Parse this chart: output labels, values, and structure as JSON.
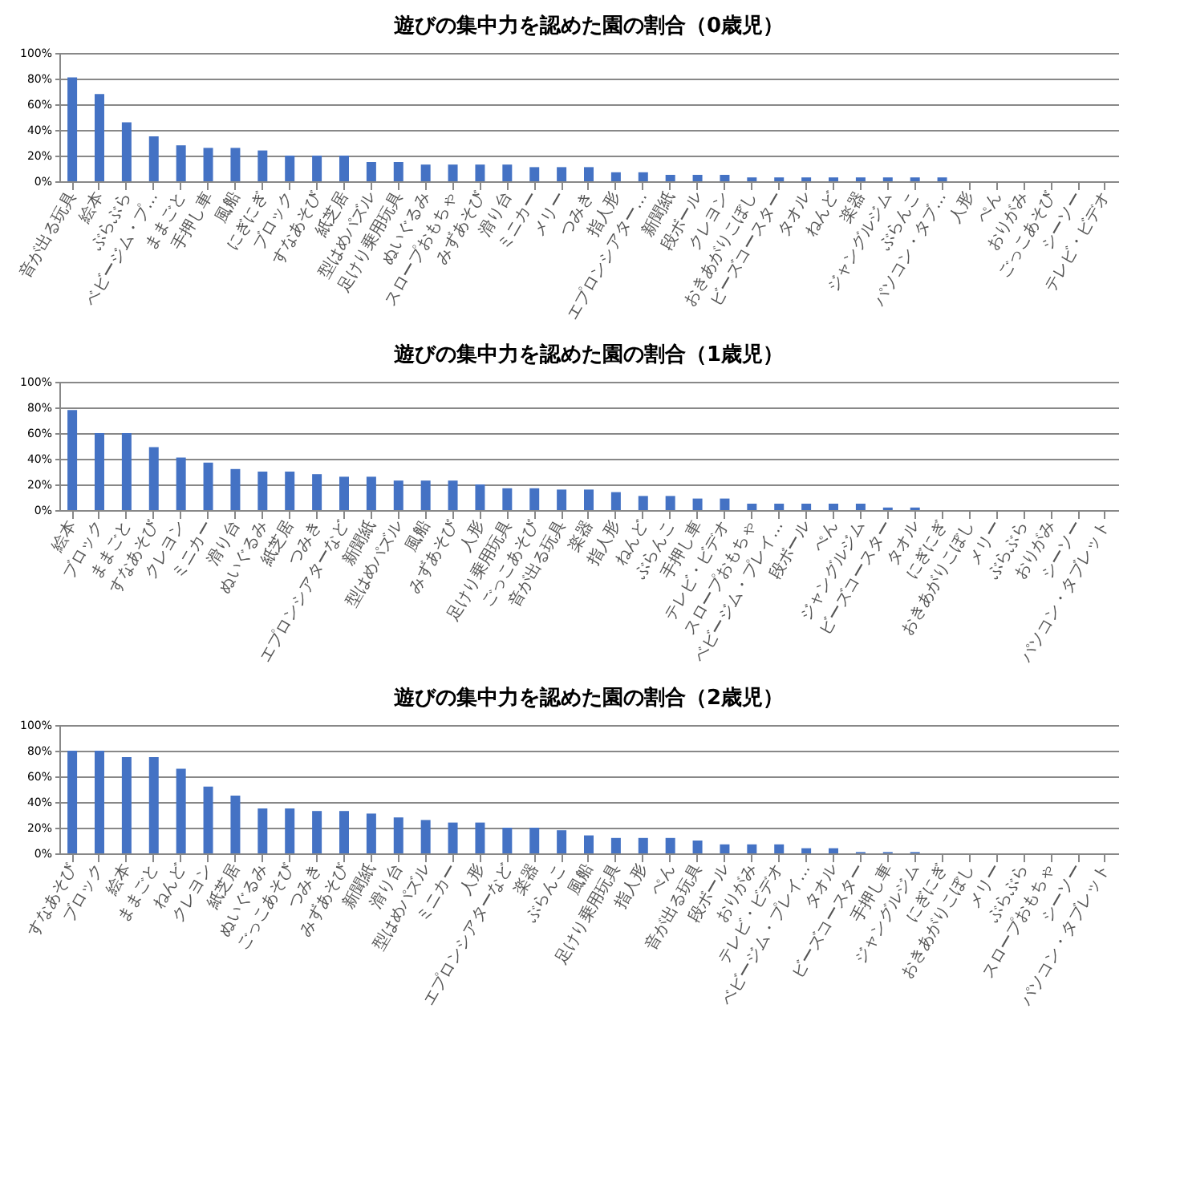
{
  "chart_data": [
    {
      "type": "bar",
      "title": "遊びの集中力を認めた園の割合（0歳児）",
      "color": "#4472c4",
      "ylim": [
        0,
        100
      ],
      "grid": "y",
      "yticks": [
        {
          "value": 0,
          "label": "0%"
        },
        {
          "value": 20,
          "label": "20%"
        },
        {
          "value": 40,
          "label": "40%"
        },
        {
          "value": 60,
          "label": "60%"
        },
        {
          "value": 80,
          "label": "80%"
        },
        {
          "value": 100,
          "label": "100%"
        }
      ],
      "categories": [
        "音が出る玩具",
        "絵本",
        "ぶらぶら",
        "ベビージム・プ…",
        "ままごと",
        "手押し車",
        "風船",
        "にぎにぎ",
        "ブロック",
        "すなあそび",
        "紙芝居",
        "型はめパズル",
        "足けり乗用玩具",
        "ぬいぐるみ",
        "スロープおもちゃ",
        "みずあそび",
        "滑り台",
        "ミニカー",
        "メリー",
        "つみき",
        "指人形",
        "エプロンシアター…",
        "新聞紙",
        "段ボール",
        "クレヨン",
        "おきあがりこぼし",
        "ビーズコースター",
        "タオル",
        "ねんど",
        "楽器",
        "ジャングルジム",
        "ぶらんこ",
        "パソコン・タブ…",
        "人形",
        "ぺん",
        "おりがみ",
        "ごっこあそび",
        "シーソー",
        "テレビ・ビデオ"
      ],
      "values": [
        81,
        68,
        46,
        35,
        28,
        26,
        26,
        24,
        20,
        20,
        20,
        15,
        15,
        13,
        13,
        13,
        13,
        11,
        11,
        11,
        7,
        7,
        5,
        5,
        5,
        3,
        3,
        3,
        3,
        3,
        3,
        3,
        3,
        0,
        0,
        0,
        0,
        0,
        0
      ]
    },
    {
      "type": "bar",
      "title": "遊びの集中力を認めた園の割合（1歳児）",
      "color": "#4472c4",
      "ylim": [
        0,
        100
      ],
      "grid": "y",
      "yticks": [
        {
          "value": 0,
          "label": "0%"
        },
        {
          "value": 20,
          "label": "20%"
        },
        {
          "value": 40,
          "label": "40%"
        },
        {
          "value": 60,
          "label": "60%"
        },
        {
          "value": 80,
          "label": "80%"
        },
        {
          "value": 100,
          "label": "100%"
        }
      ],
      "categories": [
        "絵本",
        "ブロック",
        "ままごと",
        "すなあそび",
        "クレヨン",
        "ミニカー",
        "滑り台",
        "ぬいぐるみ",
        "紙芝居",
        "つみき",
        "エプロンシアターなど",
        "新聞紙",
        "型はめパズル",
        "風船",
        "みずあそび",
        "人形",
        "足けり乗用玩具",
        "ごっこあそび",
        "音が出る玩具",
        "楽器",
        "指人形",
        "ねんど",
        "ぶらんこ",
        "手押し車",
        "テレビ・ビデオ",
        "スロープおもちゃ",
        "ベビージム・プレイ…",
        "段ボール",
        "ぺん",
        "ジャングルジム",
        "ビーズコースター",
        "タオル",
        "にぎにぎ",
        "おきあがりこぼし",
        "メリー",
        "ぶらぶら",
        "おりがみ",
        "シーソー",
        "パソコン・タブレット"
      ],
      "values": [
        78,
        60,
        60,
        49,
        41,
        37,
        32,
        30,
        30,
        28,
        26,
        26,
        23,
        23,
        23,
        20,
        17,
        17,
        16,
        16,
        14,
        11,
        11,
        9,
        9,
        5,
        5,
        5,
        5,
        5,
        2,
        2,
        0,
        0,
        0,
        0,
        0,
        0,
        0
      ]
    },
    {
      "type": "bar",
      "title": "遊びの集中力を認めた園の割合（2歳児）",
      "color": "#4472c4",
      "ylim": [
        0,
        100
      ],
      "grid": "y",
      "yticks": [
        {
          "value": 0,
          "label": "0%"
        },
        {
          "value": 20,
          "label": "20%"
        },
        {
          "value": 40,
          "label": "40%"
        },
        {
          "value": 60,
          "label": "60%"
        },
        {
          "value": 80,
          "label": "80%"
        },
        {
          "value": 100,
          "label": "100%"
        }
      ],
      "categories": [
        "すなあそび",
        "ブロック",
        "絵本",
        "ままごと",
        "ねんど",
        "クレヨン",
        "紙芝居",
        "ぬいぐるみ",
        "ごっこあそび",
        "つみき",
        "みずあそび",
        "新聞紙",
        "滑り台",
        "型はめパズル",
        "ミニカー",
        "人形",
        "エプロンシアターなど",
        "楽器",
        "ぶらんこ",
        "風船",
        "足けり乗用玩具",
        "指人形",
        "ぺん",
        "音が出る玩具",
        "段ボール",
        "おりがみ",
        "テレビ・ビデオ",
        "ベビージム・プレイ…",
        "タオル",
        "ビーズコースター",
        "手押し車",
        "ジャングルジム",
        "にぎにぎ",
        "おきあがりこぼし",
        "メリー",
        "ぶらぶら",
        "スロープおもちゃ",
        "シーソー",
        "パソコン・タブレット"
      ],
      "values": [
        80,
        80,
        75,
        75,
        66,
        52,
        45,
        35,
        35,
        33,
        33,
        31,
        28,
        26,
        24,
        24,
        20,
        20,
        18,
        14,
        12,
        12,
        12,
        10,
        7,
        7,
        7,
        4,
        4,
        1,
        1,
        1,
        0,
        0,
        0,
        0,
        0,
        0,
        0
      ]
    }
  ]
}
